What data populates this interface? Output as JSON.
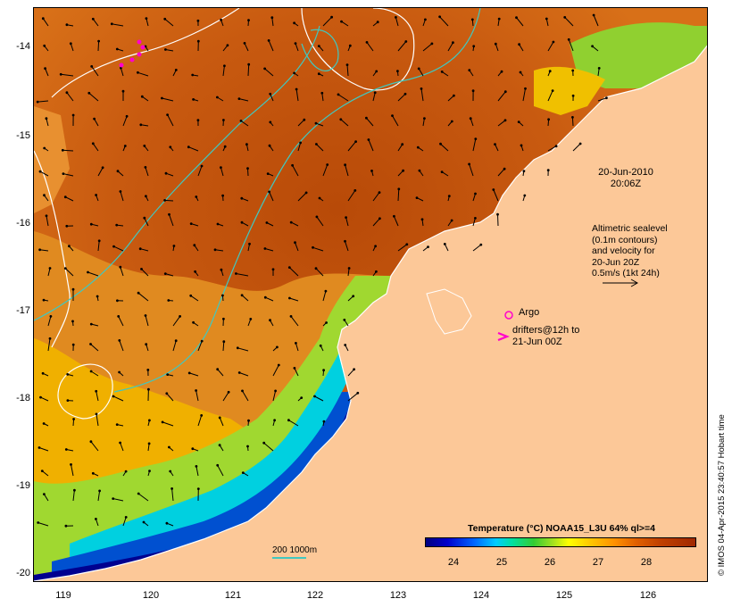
{
  "map": {
    "lat_ticks": [
      "-14",
      "-15",
      "-16",
      "-17",
      "-18",
      "-19",
      "-20"
    ],
    "lon_ticks": [
      "119",
      "120",
      "121",
      "122",
      "123",
      "124",
      "125",
      "126"
    ],
    "colors": {
      "land": "#fcc898",
      "ocean_warm": "#c85a10",
      "ocean_mid": "#e08a20",
      "ocean_cool": "#f0c000",
      "shelf_green": "#90d030",
      "shelf_blue": "#0060e0",
      "shelf_deep": "#000090",
      "contour_sealevel": "#ffffff",
      "contour_bathy": "#40c8c0",
      "drifter": "#ff00cc"
    }
  },
  "annotations": {
    "timestamp_date": "20-Jun-2010",
    "timestamp_time": "20:06Z",
    "altimetry_lines": [
      "Altimetric sealevel",
      "(0.1m contours)",
      "and velocity for",
      "20-Jun 20Z",
      "0.5m/s (1kt 24h)"
    ],
    "argo_label": "Argo",
    "drifters_line1": "drifters@12h to",
    "drifters_line2": "21-Jun 00Z",
    "scale_label": "200  1000m"
  },
  "colorbar": {
    "title": "Temperature (°C) NOAA15_L3U 64% ql>=4",
    "ticks": [
      "24",
      "25",
      "26",
      "27",
      "28"
    ]
  },
  "credit": "© IMOS 04-Apr-2015 23:40:57 Hobart time"
}
